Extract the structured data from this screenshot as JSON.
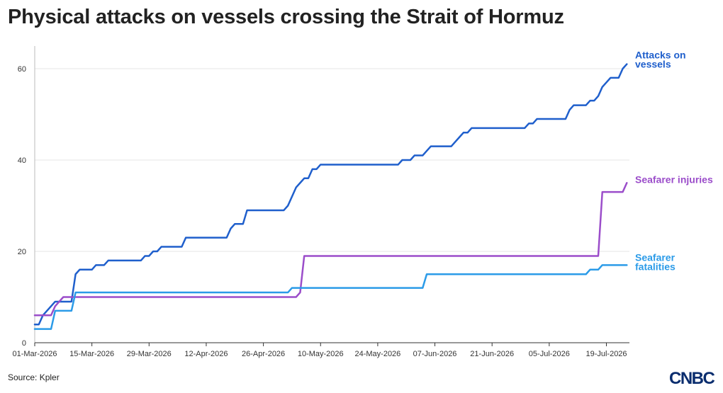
{
  "chart_data": {
    "type": "line",
    "title": "Physical attacks on vessels crossing the Strait of Hormuz",
    "x_ticks": [
      "01-Mar-2026",
      "15-Mar-2026",
      "29-Mar-2026",
      "12-Apr-2026",
      "26-Apr-2026",
      "10-May-2026",
      "24-May-2026",
      "07-Jun-2026",
      "21-Jun-2026",
      "05-Jul-2026",
      "19-Jul-2026"
    ],
    "y_ticks": [
      0,
      20,
      40,
      60
    ],
    "xlim": [
      "2026-03-01",
      "2026-07-20"
    ],
    "ylim": [
      0,
      65
    ],
    "grid": "horizontal",
    "series": [
      {
        "name": "Attacks on vessels",
        "label_lines": [
          "Attacks on",
          "vessels"
        ],
        "color": "#1f5fcc",
        "points": [
          [
            "2026-03-01",
            4
          ],
          [
            "2026-03-02",
            4
          ],
          [
            "2026-03-03",
            6
          ],
          [
            "2026-03-05",
            8
          ],
          [
            "2026-03-06",
            9
          ],
          [
            "2026-03-10",
            9
          ],
          [
            "2026-03-11",
            15
          ],
          [
            "2026-03-12",
            16
          ],
          [
            "2026-03-15",
            16
          ],
          [
            "2026-03-16",
            17
          ],
          [
            "2026-03-18",
            17
          ],
          [
            "2026-03-19",
            18
          ],
          [
            "2026-03-27",
            18
          ],
          [
            "2026-03-28",
            19
          ],
          [
            "2026-03-29",
            19
          ],
          [
            "2026-03-30",
            20
          ],
          [
            "2026-03-31",
            20
          ],
          [
            "2026-04-01",
            21
          ],
          [
            "2026-04-06",
            21
          ],
          [
            "2026-04-07",
            23
          ],
          [
            "2026-04-17",
            23
          ],
          [
            "2026-04-18",
            25
          ],
          [
            "2026-04-19",
            26
          ],
          [
            "2026-04-21",
            26
          ],
          [
            "2026-04-22",
            29
          ],
          [
            "2026-05-01",
            29
          ],
          [
            "2026-05-02",
            30
          ],
          [
            "2026-05-03",
            32
          ],
          [
            "2026-05-04",
            34
          ],
          [
            "2026-05-05",
            35
          ],
          [
            "2026-05-06",
            36
          ],
          [
            "2026-05-07",
            36
          ],
          [
            "2026-05-08",
            38
          ],
          [
            "2026-05-09",
            38
          ],
          [
            "2026-05-10",
            39
          ],
          [
            "2026-05-29",
            39
          ],
          [
            "2026-05-30",
            40
          ],
          [
            "2026-06-01",
            40
          ],
          [
            "2026-06-02",
            41
          ],
          [
            "2026-06-04",
            41
          ],
          [
            "2026-06-05",
            42
          ],
          [
            "2026-06-06",
            43
          ],
          [
            "2026-06-11",
            43
          ],
          [
            "2026-06-12",
            44
          ],
          [
            "2026-06-13",
            45
          ],
          [
            "2026-06-14",
            46
          ],
          [
            "2026-06-15",
            46
          ],
          [
            "2026-06-16",
            47
          ],
          [
            "2026-06-29",
            47
          ],
          [
            "2026-06-30",
            48
          ],
          [
            "2026-07-01",
            48
          ],
          [
            "2026-07-02",
            49
          ],
          [
            "2026-07-09",
            49
          ],
          [
            "2026-07-10",
            51
          ],
          [
            "2026-07-11",
            52
          ],
          [
            "2026-07-14",
            52
          ],
          [
            "2026-07-15",
            53
          ],
          [
            "2026-07-16",
            53
          ],
          [
            "2026-07-17",
            54
          ],
          [
            "2026-07-18",
            56
          ],
          [
            "2026-07-20",
            58
          ],
          [
            "2026-07-22",
            58
          ],
          [
            "2026-07-23",
            60
          ],
          [
            "2026-07-24",
            61
          ]
        ]
      },
      {
        "name": "Seafarer injuries",
        "label_lines": [
          "Seafarer injuries"
        ],
        "color": "#9b4dca",
        "points": [
          [
            "2026-03-01",
            6
          ],
          [
            "2026-03-05",
            6
          ],
          [
            "2026-03-06",
            8
          ],
          [
            "2026-03-07",
            9
          ],
          [
            "2026-03-08",
            10
          ],
          [
            "2026-05-04",
            10
          ],
          [
            "2026-05-05",
            11
          ],
          [
            "2026-05-06",
            19
          ],
          [
            "2026-07-17",
            19
          ],
          [
            "2026-07-18",
            33
          ],
          [
            "2026-07-23",
            33
          ],
          [
            "2026-07-24",
            35
          ]
        ]
      },
      {
        "name": "Seafarer fatalities",
        "label_lines": [
          "Seafarer",
          "fatalities"
        ],
        "color": "#2b9be8",
        "points": [
          [
            "2026-03-01",
            3
          ],
          [
            "2026-03-05",
            3
          ],
          [
            "2026-03-06",
            7
          ],
          [
            "2026-03-10",
            7
          ],
          [
            "2026-03-11",
            11
          ],
          [
            "2026-05-02",
            11
          ],
          [
            "2026-05-03",
            12
          ],
          [
            "2026-06-04",
            12
          ],
          [
            "2026-06-05",
            15
          ],
          [
            "2026-07-14",
            15
          ],
          [
            "2026-07-15",
            16
          ],
          [
            "2026-07-17",
            16
          ],
          [
            "2026-07-18",
            17
          ],
          [
            "2026-07-24",
            17
          ]
        ]
      }
    ],
    "source": "Source: Kpler"
  },
  "brand": {
    "logo_text": "CNBC",
    "color": "#0a2d6e"
  }
}
